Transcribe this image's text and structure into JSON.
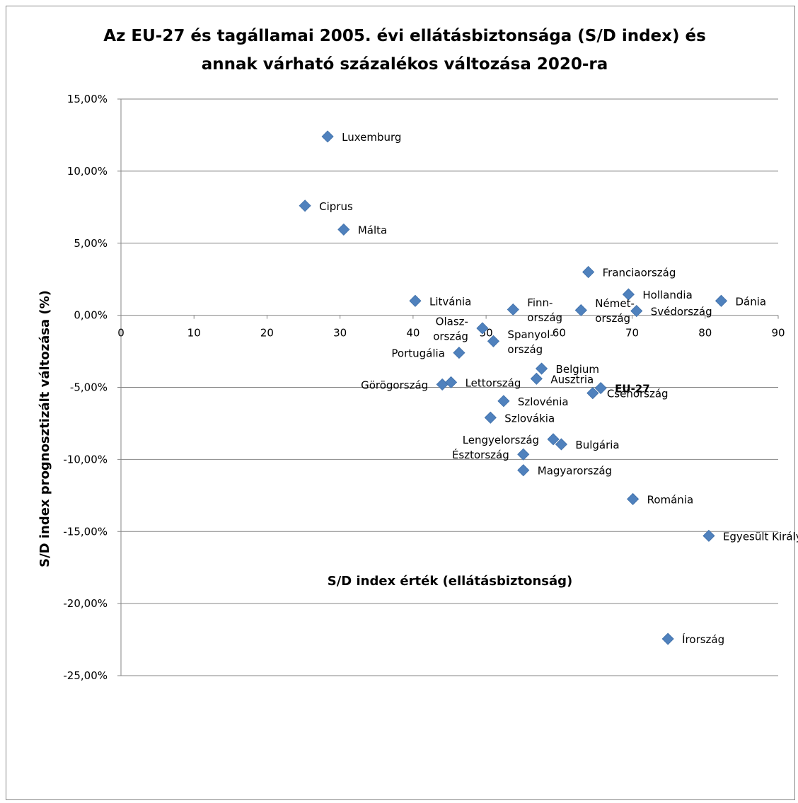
{
  "chart_data": {
    "type": "scatter",
    "title_lines": [
      "Az EU-27 és tagállamai 2005. évi ellátásbiztonsága (S/D index) és",
      "annak várható százalékos változása 2020-ra"
    ],
    "xlabel": "S/D index érték (ellátásbiztonság)",
    "ylabel": "S/D index prognosztizált változása (%)",
    "xlim": [
      0,
      90
    ],
    "ylim": [
      -25,
      15
    ],
    "x_ticks": [
      0,
      10,
      20,
      30,
      40,
      50,
      60,
      70,
      80,
      90
    ],
    "x_tick_labels": [
      "0",
      "10",
      "20",
      "30",
      "40",
      "50",
      "60",
      "70",
      "80",
      "90"
    ],
    "y_ticks": [
      15,
      10,
      5,
      0,
      -5,
      -10,
      -15,
      -20,
      -25
    ],
    "y_tick_labels": [
      "15,00%",
      "10,00%",
      "5,00%",
      "0,00%",
      "-5,00%",
      "-10,00%",
      "-15,00%",
      "-20,00%",
      "-25,00%"
    ],
    "grid": "horizontal",
    "marker": "diamond",
    "marker_color": "#4F81BD",
    "points": [
      {
        "x": 28.3,
        "y": 12.4,
        "label": [
          "Luxemburg"
        ],
        "label_pos": "right"
      },
      {
        "x": 25.2,
        "y": 7.6,
        "label": [
          "Ciprus"
        ],
        "label_pos": "right"
      },
      {
        "x": 30.5,
        "y": 5.95,
        "label": [
          "Málta"
        ],
        "label_pos": "right"
      },
      {
        "x": 64.0,
        "y": 3.0,
        "label": [
          "Franciaország"
        ],
        "label_pos": "right"
      },
      {
        "x": 69.5,
        "y": 1.45,
        "label": [
          "Hollandia"
        ],
        "label_pos": "right"
      },
      {
        "x": 82.2,
        "y": 1.0,
        "label": [
          "Dánia"
        ],
        "label_pos": "right"
      },
      {
        "x": 40.3,
        "y": 1.0,
        "label": [
          "Litvánia"
        ],
        "label_pos": "right"
      },
      {
        "x": 53.7,
        "y": 0.4,
        "label": [
          "Finn-",
          "ország"
        ],
        "label_pos": "right"
      },
      {
        "x": 63.0,
        "y": 0.35,
        "label": [
          "Német-",
          "ország"
        ],
        "label_pos": "right"
      },
      {
        "x": 70.6,
        "y": 0.3,
        "label": [
          "Svédország"
        ],
        "label_pos": "right"
      },
      {
        "x": 49.5,
        "y": -0.9,
        "label": [
          "Olasz-",
          "ország"
        ],
        "label_pos": "left"
      },
      {
        "x": 51.0,
        "y": -1.8,
        "label": [
          "Spanyol-",
          "ország"
        ],
        "label_pos": "right"
      },
      {
        "x": 46.3,
        "y": -2.6,
        "label": [
          "Portugália"
        ],
        "label_pos": "left"
      },
      {
        "x": 57.6,
        "y": -3.7,
        "label": [
          "Belgium"
        ],
        "label_pos": "right"
      },
      {
        "x": 56.9,
        "y": -4.4,
        "label": [
          "Ausztria"
        ],
        "label_pos": "right"
      },
      {
        "x": 44.0,
        "y": -4.8,
        "label": [
          "Görögország"
        ],
        "label_pos": "left"
      },
      {
        "x": 45.2,
        "y": -4.65,
        "label": [
          "Lettország"
        ],
        "label_pos": "right"
      },
      {
        "x": 64.6,
        "y": -5.4,
        "label": [
          "Csehország"
        ],
        "label_pos": "right"
      },
      {
        "x": 65.7,
        "y": -5.05,
        "label": [
          "EU-27"
        ],
        "label_pos": "right",
        "bold": true
      },
      {
        "x": 52.4,
        "y": -5.95,
        "label": [
          "Szlovénia"
        ],
        "label_pos": "right"
      },
      {
        "x": 50.6,
        "y": -7.1,
        "label": [
          "Szlovákia"
        ],
        "label_pos": "right"
      },
      {
        "x": 59.2,
        "y": -8.6,
        "label": [
          "Lengyelország"
        ],
        "label_pos": "left"
      },
      {
        "x": 60.3,
        "y": -8.95,
        "label": [
          "Bulgária"
        ],
        "label_pos": "right"
      },
      {
        "x": 55.1,
        "y": -9.65,
        "label": [
          "Észtország"
        ],
        "label_pos": "left"
      },
      {
        "x": 55.1,
        "y": -10.75,
        "label": [
          "Magyarország"
        ],
        "label_pos": "right"
      },
      {
        "x": 70.1,
        "y": -12.75,
        "label": [
          "Románia"
        ],
        "label_pos": "right"
      },
      {
        "x": 80.5,
        "y": -15.3,
        "label": [
          "Egyesült Királyság"
        ],
        "label_pos": "right"
      },
      {
        "x": 74.9,
        "y": -22.45,
        "label": [
          "Írország"
        ],
        "label_pos": "right"
      }
    ]
  }
}
